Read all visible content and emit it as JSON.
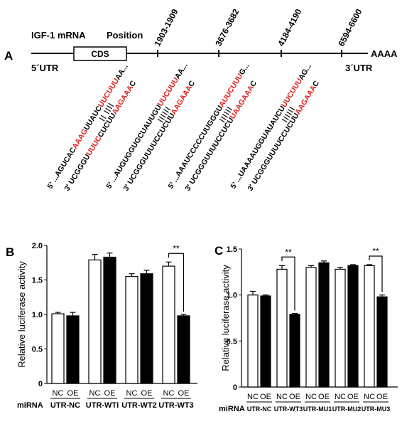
{
  "panelA": {
    "label": "A",
    "mrna_label": "IGF-1 mRNA",
    "position_label": "Position",
    "cds_label": "CDS",
    "utr5": "5´UTR",
    "utr3": "3´UTR",
    "polyA": "AAAA",
    "sites": [
      "1903-1909",
      "3676-3682",
      "4184-4190",
      "6594-6600"
    ],
    "pairs": [
      {
        "top_pre": "5' ...AGUCAC",
        "top_red1": "AAAG",
        "top_mid": "UUAUC",
        "top_red2": "UUCUUU",
        "top_post": "AA...",
        "bars": "|| ||||",
        "bot_pre": "3'  UCGGGU",
        "bot_red1": "UUUC",
        "bot_mid": "CUCUU",
        "bot_red2": "AAGAAA",
        "bot_post": "C"
      },
      {
        "top_pre": "5' ...AUGUGGUGCUAUUGU",
        "top_red1": "",
        "top_mid": "",
        "top_red2": "UUCUUU",
        "top_post": "AA...",
        "bars": "||||||",
        "bot_pre": "3'  UCGGGUUUUCCUCUU",
        "bot_red1": "",
        "bot_mid": "",
        "bot_red2": "AAGAAA",
        "bot_post": "C"
      },
      {
        "top_pre": "5' ...AAAUCCCCCUUGGGU",
        "top_red1": "",
        "top_mid": "",
        "top_red2": "AUUCUUU",
        "top_post": "G...",
        "bars": "||||||",
        "bot_pre": "3'  UCGGGUUUUCCUCU",
        "bot_red1": "",
        "bot_mid": "",
        "bot_red2": "UAAGAAA",
        "bot_post": "C"
      },
      {
        "top_pre": "5' ...UAAAAUGGUAUAUCU",
        "top_red1": "",
        "top_mid": "",
        "top_red2": "UUCUUU",
        "top_post": "AG...",
        "bars": "||||||",
        "bot_pre": "3'  UCGGGUUUUCCUCUU",
        "bot_red1": "",
        "bot_mid": "",
        "bot_red2": "AAGAAA",
        "bot_post": "C"
      }
    ]
  },
  "chart_data": [
    {
      "panel": "B",
      "type": "bar",
      "ylabel": "Relative luciferase activity",
      "ylim": [
        0,
        2.0
      ],
      "yticks": [
        "0",
        "0.5",
        "1.0",
        "1.5",
        "2.0"
      ],
      "row_label": "miRNA",
      "groups": [
        {
          "label": "UTR-NC",
          "values": [
            1.01,
            0.98
          ],
          "errors": [
            0.02,
            0.05
          ]
        },
        {
          "label": "UTR-WTI",
          "values": [
            1.79,
            1.83
          ],
          "errors": [
            0.08,
            0.06
          ]
        },
        {
          "label": "UTR-WT2",
          "values": [
            1.55,
            1.59
          ],
          "errors": [
            0.04,
            0.05
          ]
        },
        {
          "label": "UTR-WT3",
          "values": [
            1.7,
            0.98
          ],
          "errors": [
            0.06,
            0.02
          ]
        }
      ],
      "sublabels": [
        "NC",
        "OE"
      ],
      "series": [
        {
          "name": "NC",
          "color": "#ffffff"
        },
        {
          "name": "OE",
          "color": "#000000"
        }
      ],
      "significance": [
        {
          "group": 3,
          "text": "**"
        }
      ]
    },
    {
      "panel": "C",
      "type": "bar",
      "ylabel": "Relative luciferase activity",
      "ylim": [
        0,
        1.5
      ],
      "yticks": [
        "0",
        "0.5",
        "1.0",
        "1.5"
      ],
      "row_label": "miRNA",
      "groups": [
        {
          "label": "UTR-NC",
          "values": [
            1.0,
            0.99
          ],
          "errors": [
            0.04,
            0.01
          ]
        },
        {
          "label": "UTR-WT3",
          "values": [
            1.28,
            0.79
          ],
          "errors": [
            0.04,
            0.01
          ]
        },
        {
          "label": "UTR-MU1",
          "values": [
            1.3,
            1.35
          ],
          "errors": [
            0.02,
            0.02
          ]
        },
        {
          "label": "UTR-MU2",
          "values": [
            1.28,
            1.32
          ],
          "errors": [
            0.02,
            0.01
          ]
        },
        {
          "label": "UTR-MU3",
          "values": [
            1.32,
            0.98
          ],
          "errors": [
            0.01,
            0.02
          ]
        }
      ],
      "sublabels": [
        "NC",
        "OE"
      ],
      "series": [
        {
          "name": "NC",
          "color": "#ffffff"
        },
        {
          "name": "OE",
          "color": "#000000"
        }
      ],
      "significance": [
        {
          "group": 1,
          "text": "**"
        },
        {
          "group": 4,
          "text": "**"
        }
      ]
    }
  ]
}
